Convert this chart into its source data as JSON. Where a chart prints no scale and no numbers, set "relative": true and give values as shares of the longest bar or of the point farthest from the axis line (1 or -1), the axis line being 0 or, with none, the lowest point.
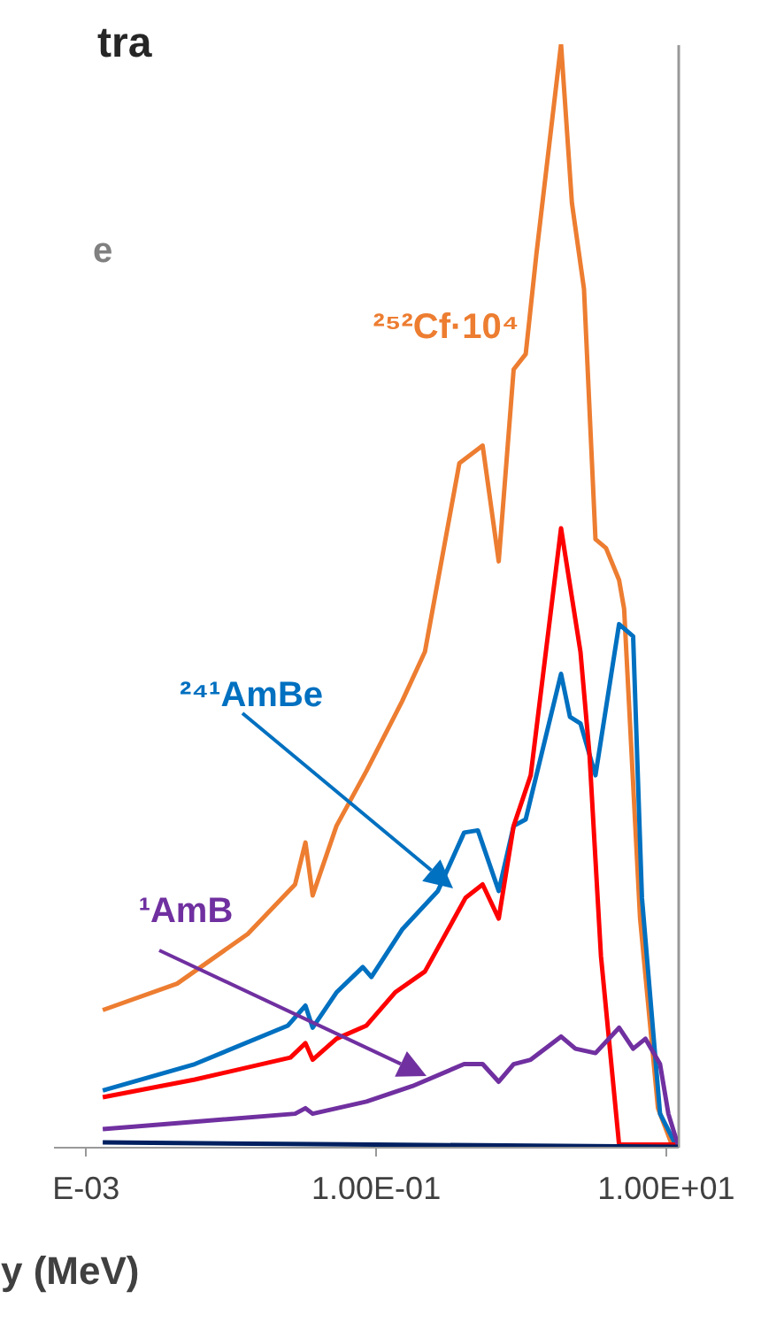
{
  "chart_data": {
    "type": "line",
    "title": "tra",
    "xlabel": "y (MeV)",
    "log": "x",
    "relative": true,
    "grid": false,
    "marker": "none",
    "line_style": "solid",
    "xlim": [
      0.0006,
      12.2
    ],
    "xticks": [
      {
        "value": 0.001,
        "label": "E-03"
      },
      {
        "value": 0.1,
        "label": "1.00E-01"
      },
      {
        "value": 10,
        "label": "1.00E+01"
      }
    ],
    "annotations": [
      "e"
    ],
    "series": [
      {
        "name": "²⁵²Cf·10⁴",
        "color": "#ed7d31",
        "x": [
          0.00132,
          0.0043,
          0.0132,
          0.028,
          0.033,
          0.037,
          0.054,
          0.087,
          0.153,
          0.22,
          0.38,
          0.55,
          0.71,
          0.9,
          1.09,
          1.29,
          1.91,
          2.27,
          2.75,
          3.3,
          3.9,
          4.8,
          5.2,
          6.7,
          8.9,
          11.1
        ],
        "values": [
          0.124,
          0.148,
          0.193,
          0.238,
          0.276,
          0.228,
          0.291,
          0.341,
          0.404,
          0.449,
          0.62,
          0.636,
          0.531,
          0.705,
          0.719,
          0.809,
          1,
          0.856,
          0.778,
          0.551,
          0.543,
          0.514,
          0.488,
          0.207,
          0.035,
          0.002
        ]
      },
      {
        "name": "²⁴¹AmBe",
        "color": "#0070c0",
        "x": [
          0.00132,
          0.0057,
          0.025,
          0.033,
          0.037,
          0.054,
          0.082,
          0.094,
          0.153,
          0.27,
          0.41,
          0.51,
          0.71,
          0.9,
          1.09,
          1.91,
          2.2,
          2.6,
          3.3,
          4.8,
          6.0,
          6.9,
          9.2,
          11.8
        ],
        "values": [
          0.051,
          0.075,
          0.11,
          0.128,
          0.108,
          0.14,
          0.163,
          0.154,
          0.197,
          0.232,
          0.285,
          0.287,
          0.232,
          0.291,
          0.297,
          0.429,
          0.39,
          0.384,
          0.337,
          0.474,
          0.463,
          0.226,
          0.03,
          0.002
        ]
      },
      {
        "color": "#ff0000",
        "x": [
          0.00132,
          0.0057,
          0.026,
          0.033,
          0.037,
          0.054,
          0.087,
          0.137,
          0.22,
          0.42,
          0.55,
          0.71,
          0.9,
          1.18,
          1.91,
          2.6,
          3.0,
          3.6,
          4.8,
          12.2
        ],
        "values": [
          0.045,
          0.061,
          0.081,
          0.094,
          0.079,
          0.098,
          0.11,
          0.14,
          0.159,
          0.226,
          0.238,
          0.207,
          0.291,
          0.337,
          0.561,
          0.449,
          0.356,
          0.173,
          0.002,
          0.002
        ]
      },
      {
        "name": "¹AmB",
        "color": "#7030a0",
        "x": [
          0.00132,
          0.028,
          0.033,
          0.037,
          0.087,
          0.18,
          0.41,
          0.55,
          0.71,
          0.9,
          1.18,
          1.91,
          2.4,
          3.3,
          4.8,
          6.0,
          7.3,
          9.2,
          10.5,
          12.2
        ],
        "values": [
          0.016,
          0.03,
          0.035,
          0.03,
          0.041,
          0.055,
          0.075,
          0.075,
          0.059,
          0.075,
          0.079,
          0.1,
          0.089,
          0.085,
          0.108,
          0.089,
          0.098,
          0.075,
          0.03,
          0.002
        ]
      },
      {
        "color": "#002060",
        "x": [
          0.00132,
          0.1,
          12.2
        ],
        "values": [
          0.004,
          0.002,
          0
        ]
      }
    ]
  }
}
